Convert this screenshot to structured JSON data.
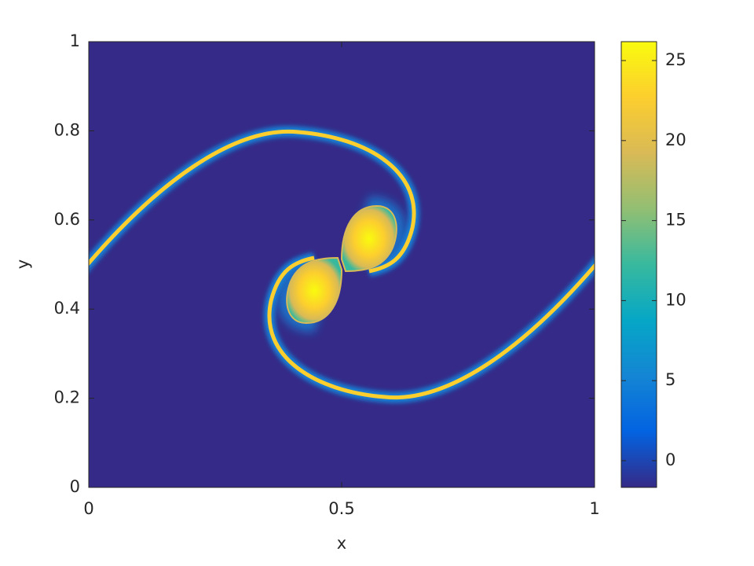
{
  "chart_data": {
    "type": "heatmap",
    "xlabel": "x",
    "ylabel": "y",
    "xlim": [
      0,
      1
    ],
    "xticks": [
      0,
      0.5,
      1
    ],
    "ylim": [
      0,
      1
    ],
    "yticks": [
      0,
      0.2,
      0.4,
      0.6,
      0.8,
      1
    ],
    "colorbar": {
      "clim": [
        -1.67,
        26.18
      ],
      "ticks": [
        0,
        5,
        10,
        15,
        20,
        25
      ],
      "colormap": "parula"
    }
  }
}
